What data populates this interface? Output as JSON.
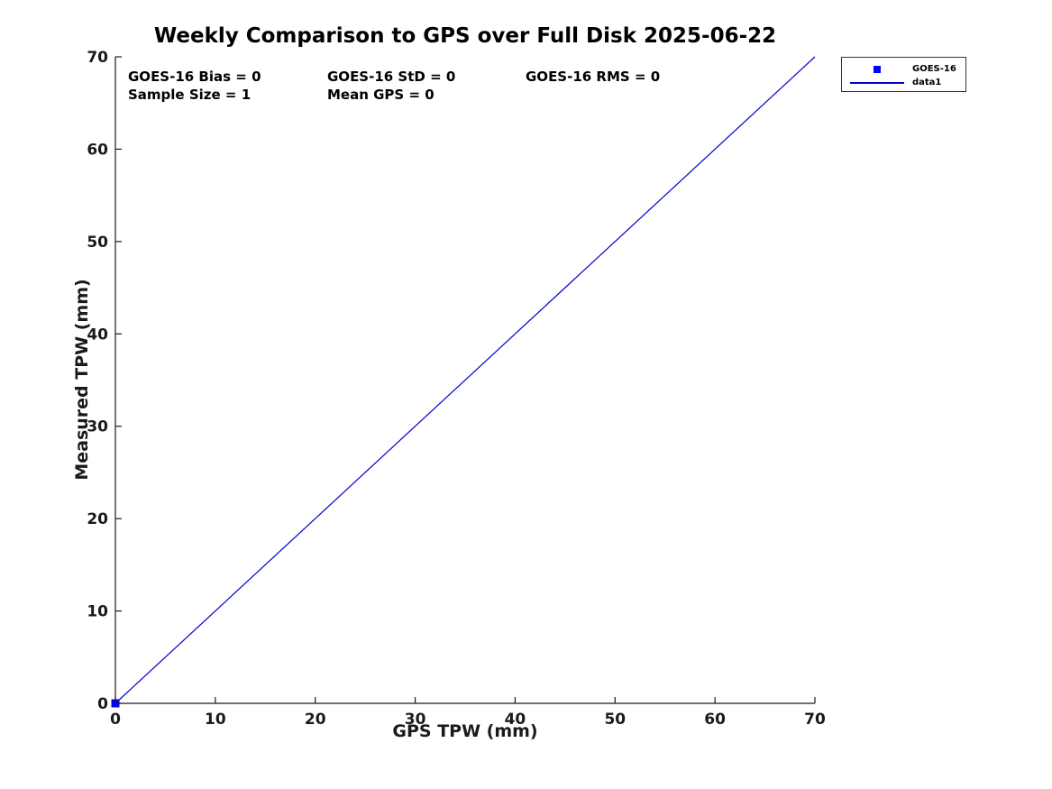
{
  "figure": {
    "background": "#ffffff",
    "text_color": "#1a1a1a"
  },
  "annotations": {
    "bias": "GOES-16 Bias = 0",
    "std": "GOES-16 StD = 0",
    "rms": "GOES-16 RMS = 0",
    "sample_size": "Sample Size = 1",
    "mean_gps": "Mean GPS = 0"
  },
  "legend": {
    "position": "outside-top-right",
    "border_color": "#333333"
  },
  "chart_data": {
    "type": "scatter",
    "title": "Weekly Comparison to GPS over Full Disk 2025-06-22",
    "xlabel": "GPS TPW (mm)",
    "ylabel": "Measured TPW (mm)",
    "xlim": [
      0,
      70
    ],
    "ylim": [
      0,
      70
    ],
    "xticks": [
      0,
      10,
      20,
      30,
      40,
      50,
      60,
      70
    ],
    "yticks": [
      0,
      10,
      20,
      30,
      40,
      50,
      60,
      70
    ],
    "grid": false,
    "box": false,
    "axis_color": "#1a1a1a",
    "series": [
      {
        "name": "GOES-16",
        "type": "scatter",
        "marker": "square",
        "color": "#0000ff",
        "points": [
          [
            0,
            0
          ]
        ]
      },
      {
        "name": "data1",
        "type": "line",
        "color": "#0000cc",
        "points": [
          [
            0,
            0
          ],
          [
            70,
            70
          ]
        ]
      }
    ]
  }
}
